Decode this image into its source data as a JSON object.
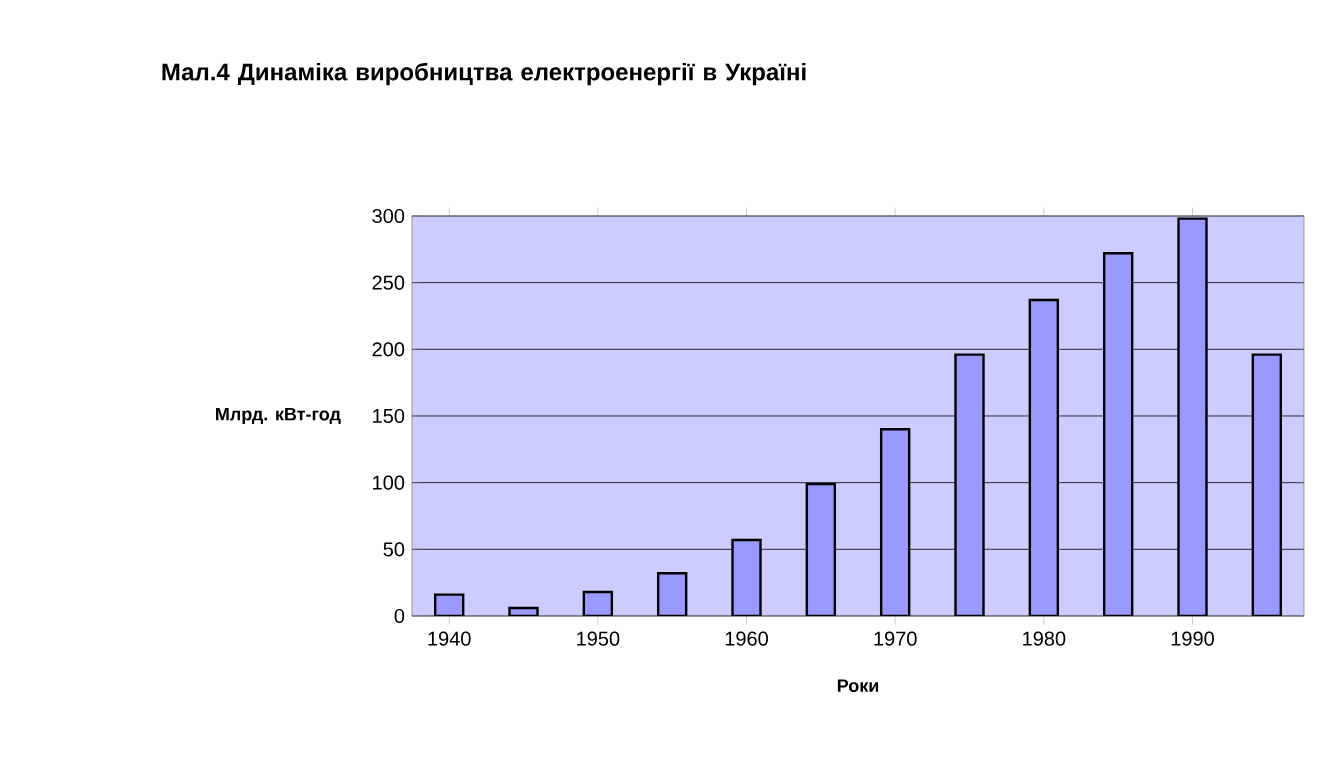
{
  "chart_data": {
    "type": "bar",
    "title": "Мал.4 Динаміка виробництва електроенергії в Україні",
    "xlabel": "Роки",
    "ylabel": "Млрд. кВт-год",
    "categories": [
      "1940",
      null,
      "1950",
      null,
      "1960",
      null,
      "1970",
      null,
      "1980",
      null,
      "1990",
      null
    ],
    "values": [
      16,
      6,
      18,
      32,
      57,
      99,
      140,
      196,
      237,
      272,
      298,
      196
    ],
    "color": "#9999ff",
    "ylim": [
      0,
      300
    ],
    "yticks": [
      0,
      50,
      100,
      150,
      200,
      250,
      300
    ],
    "grid": "y"
  }
}
